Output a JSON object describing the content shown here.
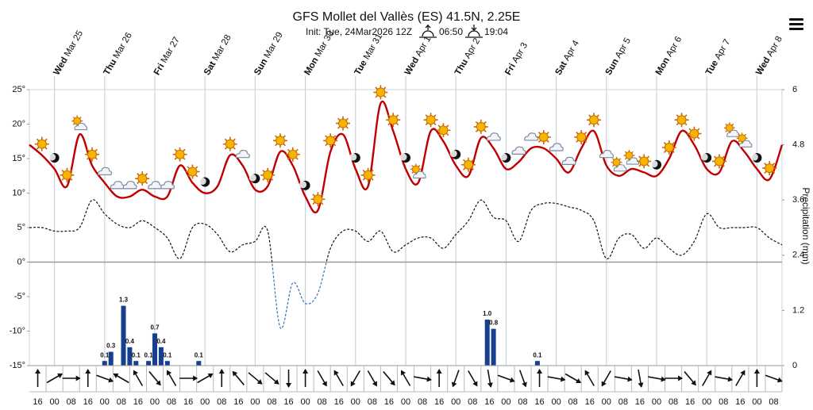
{
  "chart_data": {
    "type": "meteogram",
    "title": "GFS Mollet del Vallès (ES) 41.5N, 2.25E",
    "init": "Init: Tue, 24Mar2026 12Z",
    "sunrise": "06:50",
    "sunset": "19:04",
    "y2label": "Precipitation (mm)",
    "xlim": [
      0,
      360
    ],
    "xticks": [
      {
        "value": 4,
        "label": "16"
      },
      {
        "value": 12,
        "label": "00"
      },
      {
        "value": 20,
        "label": "08"
      },
      {
        "value": 28,
        "label": "16"
      },
      {
        "value": 36,
        "label": "00"
      },
      {
        "value": 44,
        "label": "08"
      },
      {
        "value": 52,
        "label": "16"
      },
      {
        "value": 60,
        "label": "00"
      },
      {
        "value": 68,
        "label": "08"
      },
      {
        "value": 76,
        "label": "16"
      },
      {
        "value": 84,
        "label": "00"
      },
      {
        "value": 92,
        "label": "08"
      },
      {
        "value": 100,
        "label": "16"
      },
      {
        "value": 108,
        "label": "00"
      },
      {
        "value": 116,
        "label": "08"
      },
      {
        "value": 124,
        "label": "16"
      },
      {
        "value": 132,
        "label": "00"
      },
      {
        "value": 140,
        "label": "08"
      },
      {
        "value": 148,
        "label": "16"
      },
      {
        "value": 156,
        "label": "00"
      },
      {
        "value": 164,
        "label": "08"
      },
      {
        "value": 172,
        "label": "16"
      },
      {
        "value": 180,
        "label": "00"
      },
      {
        "value": 188,
        "label": "08"
      },
      {
        "value": 196,
        "label": "16"
      },
      {
        "value": 204,
        "label": "00"
      },
      {
        "value": 212,
        "label": "08"
      },
      {
        "value": 220,
        "label": "16"
      },
      {
        "value": 228,
        "label": "00"
      },
      {
        "value": 236,
        "label": "08"
      },
      {
        "value": 244,
        "label": "16"
      },
      {
        "value": 252,
        "label": "00"
      },
      {
        "value": 260,
        "label": "08"
      },
      {
        "value": 268,
        "label": "16"
      },
      {
        "value": 276,
        "label": "00"
      },
      {
        "value": 284,
        "label": "08"
      },
      {
        "value": 292,
        "label": "16"
      },
      {
        "value": 300,
        "label": "00"
      },
      {
        "value": 308,
        "label": "08"
      },
      {
        "value": 316,
        "label": "16"
      },
      {
        "value": 324,
        "label": "00"
      },
      {
        "value": 332,
        "label": "08"
      },
      {
        "value": 340,
        "label": "16"
      },
      {
        "value": 348,
        "label": "00"
      },
      {
        "value": 356,
        "label": "08"
      }
    ],
    "day_labels": [
      {
        "value": 12,
        "weekday": "Wed",
        "date": "Mar 25"
      },
      {
        "value": 36,
        "weekday": "Thu",
        "date": "Mar 26"
      },
      {
        "value": 60,
        "weekday": "Fri",
        "date": "Mar 27"
      },
      {
        "value": 84,
        "weekday": "Sat",
        "date": "Mar 28"
      },
      {
        "value": 108,
        "weekday": "Sun",
        "date": "Mar 29"
      },
      {
        "value": 132,
        "weekday": "Mon",
        "date": "Mar 30"
      },
      {
        "value": 156,
        "weekday": "Tue",
        "date": "Mar 31"
      },
      {
        "value": 180,
        "weekday": "Wed",
        "date": "Apr 1"
      },
      {
        "value": 204,
        "weekday": "Thu",
        "date": "Apr 2"
      },
      {
        "value": 228,
        "weekday": "Fri",
        "date": "Apr 3"
      },
      {
        "value": 252,
        "weekday": "Sat",
        "date": "Apr 4"
      },
      {
        "value": 276,
        "weekday": "Sun",
        "date": "Apr 5"
      },
      {
        "value": 300,
        "weekday": "Mon",
        "date": "Apr 6"
      },
      {
        "value": 324,
        "weekday": "Tue",
        "date": "Apr 7"
      },
      {
        "value": 348,
        "weekday": "Wed",
        "date": "Apr 8"
      }
    ],
    "ylim": [
      -15,
      25
    ],
    "yticks": [
      {
        "value": 25,
        "label": "25°"
      },
      {
        "value": 20,
        "label": "20°"
      },
      {
        "value": 15,
        "label": "15°"
      },
      {
        "value": 10,
        "label": "10°"
      },
      {
        "value": 5,
        "label": "5°"
      },
      {
        "value": 0,
        "label": "0°"
      },
      {
        "value": -5,
        "label": "-5°"
      },
      {
        "value": -10,
        "label": "-10°"
      },
      {
        "value": -15,
        "label": "-15°"
      }
    ],
    "y2lim": [
      0,
      6
    ],
    "y2ticks": [
      0,
      1.2,
      2.4,
      3.6,
      4.8,
      6
    ],
    "x": [
      0,
      6,
      12,
      18,
      24,
      30,
      36,
      42,
      48,
      54,
      60,
      66,
      72,
      78,
      84,
      90,
      96,
      102,
      108,
      114,
      120,
      126,
      132,
      138,
      144,
      150,
      156,
      162,
      168,
      174,
      180,
      186,
      192,
      198,
      204,
      210,
      216,
      222,
      228,
      234,
      240,
      246,
      252,
      258,
      264,
      270,
      276,
      282,
      288,
      294,
      300,
      306,
      312,
      318,
      324,
      330,
      336,
      342,
      348,
      354,
      360
    ],
    "series": [
      {
        "name": "Temperature",
        "color": "#c00000",
        "values": [
          17,
          15.5,
          13.5,
          11,
          18.5,
          14,
          11.5,
          9.5,
          9.5,
          10.5,
          9.5,
          9.5,
          14,
          11.5,
          10,
          11,
          15.5,
          14,
          10.5,
          11,
          16,
          14,
          9.5,
          7.5,
          16,
          18.5,
          13.5,
          11,
          23,
          19,
          13.5,
          11.5,
          19,
          17.5,
          14,
          12.5,
          18,
          16.5,
          13.5,
          14.5,
          16.5,
          16.5,
          15,
          13,
          16.5,
          19,
          14,
          12.5,
          13.5,
          13,
          12.5,
          15,
          19,
          17,
          13.5,
          13,
          17.5,
          16,
          13.5,
          12,
          17
        ]
      },
      {
        "name": "Dew point",
        "color": "#111111",
        "values": [
          5,
          5,
          4.5,
          4.5,
          5,
          9,
          7,
          5.5,
          5,
          6,
          5,
          3.5,
          0.5,
          5,
          5.5,
          4,
          1.5,
          2.5,
          3,
          4.5,
          -9.5,
          -3,
          -6,
          -4.5,
          2,
          4.5,
          4.5,
          3,
          4.5,
          1.5,
          2.5,
          3.5,
          3.5,
          2,
          4,
          6,
          9,
          6.5,
          6,
          3,
          7.5,
          8.5,
          8.5,
          8,
          7.5,
          6,
          0.5,
          3.5,
          4,
          2,
          3.5,
          2,
          1,
          3,
          7,
          5,
          5,
          5,
          5,
          3.5,
          2.5
        ]
      }
    ],
    "below_zero_color": "#3a6fb0",
    "weather": [
      null,
      "sun",
      "moon",
      "sun",
      "suncloud",
      "sun",
      "cloud",
      "cloud",
      "cloud",
      "sun",
      "cloud",
      "cloud",
      "sun",
      "sun",
      "moon",
      null,
      "sun",
      "cloud",
      "moon",
      "sun",
      "sun",
      "sun",
      "moon",
      "sun",
      "sun",
      "sun",
      "moon",
      "sun",
      "sun",
      "sun",
      "moon",
      "suncloud",
      "sun",
      "sun",
      "moon",
      "sun",
      "sun",
      "cloud",
      "moon",
      "cloud",
      "cloud",
      "sun",
      "cloud",
      "cloud",
      "sun",
      "sun",
      "cloud",
      "suncloud",
      "suncloud",
      "sun",
      "moon",
      "sun",
      "sun",
      "sun",
      "moon",
      "sun",
      "suncloud",
      "suncloud",
      "moon",
      "sun",
      null
    ],
    "precipitation": {
      "color": "#163f8f",
      "x": [
        36,
        39,
        45,
        48,
        51,
        57,
        60,
        63,
        66,
        81,
        219,
        222,
        243
      ],
      "values": [
        0.1,
        0.3,
        1.3,
        0.4,
        0.1,
        0.1,
        0.7,
        0.4,
        0.1,
        0.1,
        1.0,
        0.8,
        0.1
      ],
      "value_labels": [
        "0.1",
        "0.3",
        "1.3",
        "0.4",
        "0.1",
        "0.1",
        "0.7",
        "0.4",
        "0.1",
        "0.1",
        "1.0",
        "0.8",
        "0.1"
      ]
    },
    "wind_direction": [
      0,
      60,
      90,
      0,
      110,
      300,
      330,
      140,
      330,
      90,
      60,
      0,
      320,
      130,
      130,
      180,
      0,
      150,
      330,
      210,
      150,
      140,
      330,
      100,
      0,
      200,
      150,
      170,
      110,
      160,
      0,
      100,
      120,
      330,
      210,
      100,
      170,
      100,
      90,
      140,
      30,
      100,
      30,
      0,
      110
    ]
  }
}
